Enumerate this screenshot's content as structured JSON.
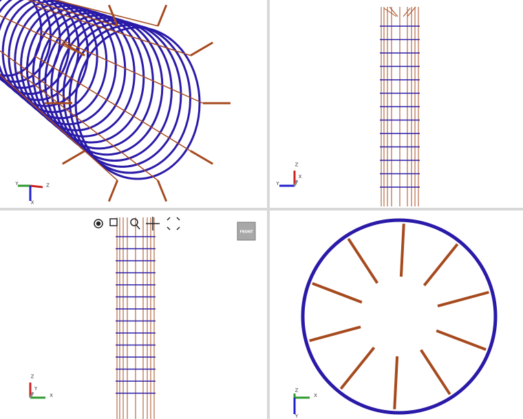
{
  "viewports": [
    {
      "axes": [
        "Y",
        "Z",
        "X"
      ]
    },
    {
      "axes": [
        "Y",
        "Z",
        "X"
      ]
    },
    {
      "axes": [
        "Z",
        "X",
        "Y"
      ]
    },
    {
      "axes": [
        "Z",
        "X",
        "Y"
      ]
    }
  ],
  "view_cube": {
    "label": "FRONT"
  }
}
